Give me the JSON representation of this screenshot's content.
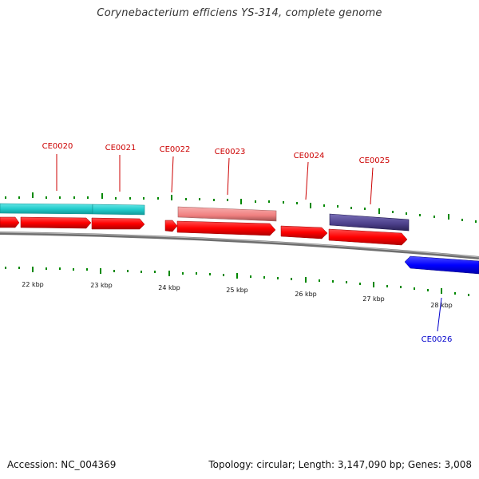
{
  "title": "Corynebacterium efficiens YS-314, complete genome",
  "accession_text": "Accession: NC_004369",
  "summary_text": "Topology: circular; Length: 3,147,090 bp; Genes: 3,008",
  "colors": {
    "backbone": "#888888",
    "cds_red": "#ff0000",
    "cds_cyan": "#22cccc",
    "cds_pink": "#f08080",
    "cds_purple": "#4b3f8a",
    "cds_blue": "#0000ff",
    "label_red": "#cc0000",
    "label_blue": "#0000cc",
    "tick_green": "#007700"
  },
  "labels": {
    "kbp": [
      "22 kbp",
      "23 kbp",
      "24 kbp",
      "25 kbp",
      "26 kbp",
      "27 kbp",
      "28 kbp"
    ],
    "genes": [
      "CE0020",
      "CE0021",
      "CE0022",
      "CE0023",
      "CE0024",
      "CE0025",
      "CE0026"
    ]
  }
}
